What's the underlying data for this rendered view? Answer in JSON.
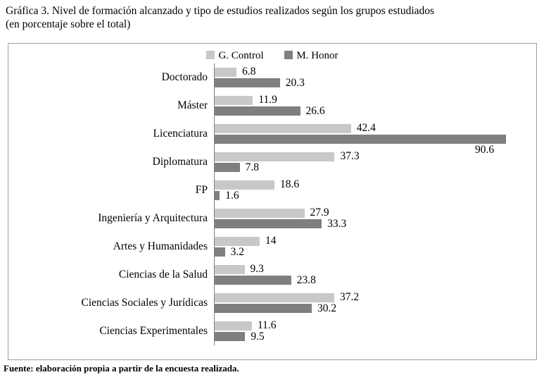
{
  "title": "Gráfica 3. Nivel de formación alcanzado y tipo de estudios realizados según los grupos estudiados",
  "subtitle": "(en porcentaje sobre el total)",
  "source_note": "Fuente: elaboración propia a partir de la encuesta realizada.",
  "colors": {
    "control_bar": "#c8c8c8",
    "honor_bar": "#7f7f7f",
    "frame_border": "#9c9c9c",
    "axis_line": "#808080",
    "text": "#000000"
  },
  "chart_data": {
    "type": "bar",
    "orientation": "horizontal",
    "title": "Gráfica 3. Nivel de formación alcanzado y tipo de estudios realizados según los grupos estudiados (en porcentaje sobre el total)",
    "xlabel": "",
    "ylabel": "",
    "xlim": [
      0,
      100
    ],
    "grid": false,
    "legend_position": "top",
    "categories": [
      "Doctorado",
      "Máster",
      "Licenciatura",
      "Diplomatura",
      "FP",
      "Ingeniería y Arquitectura",
      "Artes y Humanidades",
      "Ciencias de la Salud",
      "Ciencias Sociales y Jurídicas",
      "Ciencias Experimentales"
    ],
    "series": [
      {
        "name": "G. Control",
        "values": [
          6.8,
          11.9,
          42.4,
          37.3,
          18.6,
          27.9,
          14,
          9.3,
          37.2,
          11.6
        ],
        "value_labels": [
          "6.8",
          "11.9",
          "42.4",
          "37.3",
          "18.6",
          "27.9",
          "14",
          "9.3",
          "37.2",
          "11.6"
        ]
      },
      {
        "name": "M. Honor",
        "values": [
          20.3,
          26.6,
          90.6,
          7.8,
          1.6,
          33.3,
          3.2,
          23.8,
          30.2,
          9.5
        ],
        "value_labels": [
          "20.3",
          "26.6",
          "90.6",
          "7.8",
          "1.6",
          "33.3",
          "3.2",
          "23.8",
          "30.2",
          "9.5"
        ]
      }
    ]
  }
}
